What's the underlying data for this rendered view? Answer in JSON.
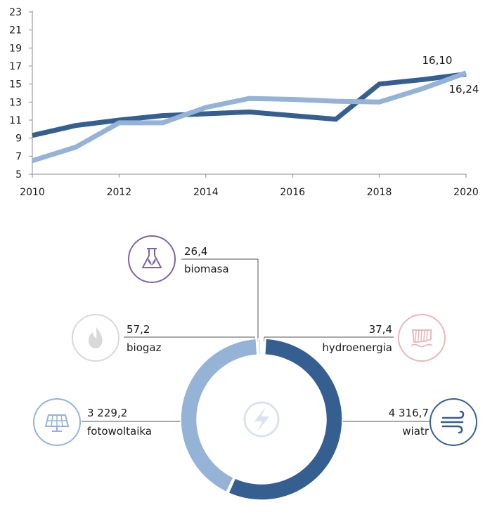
{
  "colors": {
    "series_dark": "#365f91",
    "series_light": "#95b3d7",
    "axis": "#8c8c8c",
    "text": "#1a1a1a",
    "biomasa": "#8064a2",
    "biogaz": "#d9d9d9",
    "hydroenergia": "#e6b9b8",
    "fotowoltaika": "#95b3d7",
    "wiatr": "#365f91",
    "center_icon": "#dbe3ee"
  },
  "chart_data": [
    {
      "type": "line",
      "xlim": [
        2010,
        2020
      ],
      "ylim": [
        5,
        23
      ],
      "x_ticks": [
        2010,
        2012,
        2014,
        2016,
        2018,
        2020
      ],
      "y_ticks": [
        5,
        7,
        9,
        11,
        13,
        15,
        17,
        19,
        21,
        23
      ],
      "grid": false,
      "series": [
        {
          "color_key": "series_dark",
          "x": [
            2010,
            2011,
            2012,
            2013,
            2014,
            2015,
            2016,
            2017,
            2018,
            2019,
            2020
          ],
          "y": [
            9.3,
            10.4,
            11.0,
            11.5,
            11.7,
            11.9,
            11.5,
            11.1,
            15.0,
            15.5,
            16.1
          ],
          "end_label": "16,10"
        },
        {
          "color_key": "series_light",
          "x": [
            2010,
            2011,
            2012,
            2013,
            2014,
            2015,
            2016,
            2017,
            2018,
            2019,
            2020
          ],
          "y": [
            6.5,
            8.0,
            10.7,
            10.7,
            12.4,
            13.4,
            13.3,
            13.1,
            13.0,
            14.5,
            16.24
          ],
          "end_label": "16,24"
        }
      ]
    },
    {
      "type": "pie",
      "subtype": "donut",
      "slices": [
        {
          "key": "wiatr",
          "value_label": "4 316,7",
          "label": "wiatr",
          "value": 4316.7,
          "icon": "wind-icon",
          "color_key": "wiatr"
        },
        {
          "key": "fotowoltaika",
          "value_label": "3 229,2",
          "label": "fotowoltaika",
          "value": 3229.2,
          "icon": "solar-panel-icon",
          "color_key": "fotowoltaika"
        },
        {
          "key": "biogaz",
          "value_label": "57,2",
          "label": "biogaz",
          "value": 57.2,
          "icon": "flame-icon",
          "color_key": "biogaz"
        },
        {
          "key": "biomasa",
          "value_label": "26,4",
          "label": "biomasa",
          "value": 26.4,
          "icon": "flask-leaf-icon",
          "color_key": "biomasa"
        },
        {
          "key": "hydroenergia",
          "value_label": "37,4",
          "label": "hydroenergia",
          "value": 37.4,
          "icon": "dam-icon",
          "color_key": "hydroenergia"
        }
      ],
      "center_icon": "lightning-icon"
    }
  ]
}
